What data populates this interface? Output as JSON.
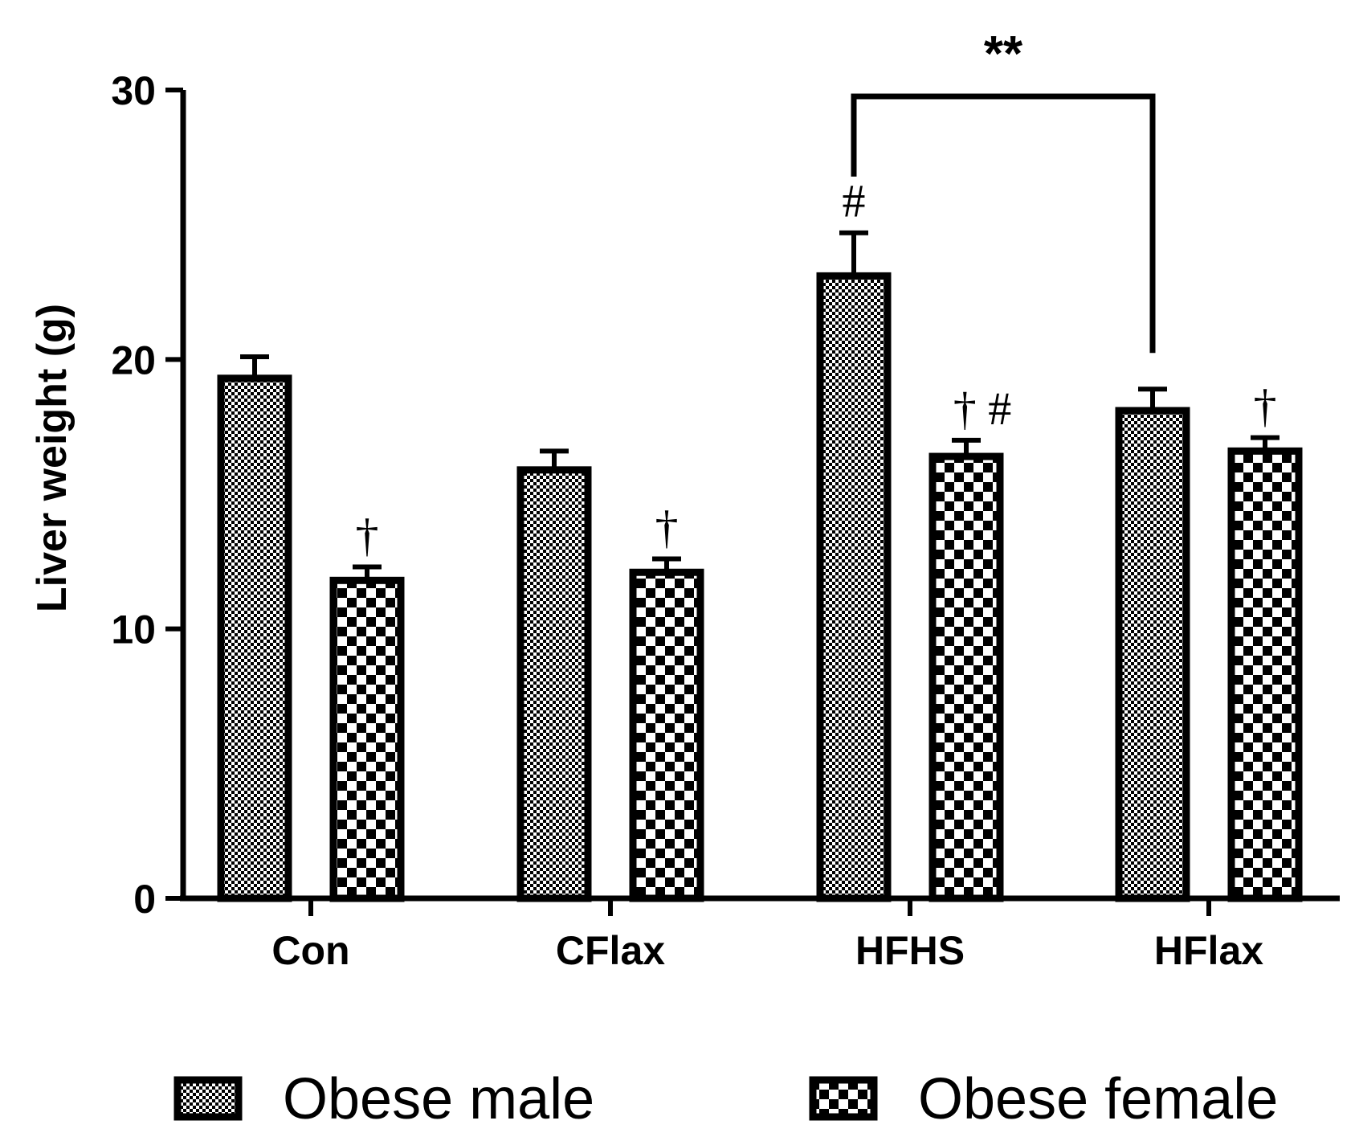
{
  "chart_data": {
    "type": "bar",
    "title": "",
    "xlabel": "",
    "ylabel": "Liver weight (g)",
    "ylim": [
      0,
      30
    ],
    "yticks": [
      "0",
      "10",
      "20",
      "30"
    ],
    "categories": [
      "Con",
      "CFlax",
      "HFHS",
      "HFlax"
    ],
    "series": [
      {
        "name": "Obese male",
        "pattern": "fine-check",
        "values": [
          19.3,
          15.9,
          23.1,
          18.1
        ],
        "errors": [
          0.8,
          0.7,
          1.6,
          0.8
        ],
        "annotations": [
          "",
          "",
          "#",
          ""
        ]
      },
      {
        "name": "Obese female",
        "pattern": "coarse-check",
        "values": [
          11.8,
          12.1,
          16.4,
          16.6
        ],
        "errors": [
          0.5,
          0.5,
          0.6,
          0.5
        ],
        "annotations": [
          "†",
          "†",
          "† #",
          "†"
        ]
      }
    ],
    "significance": [
      {
        "from": "HFHS:Obese male",
        "to": "HFlax:Obese male",
        "label": "**"
      }
    ],
    "legend_position": "bottom",
    "grid": false
  },
  "colors": {
    "ink": "#000000",
    "fill": "#ffffff"
  }
}
